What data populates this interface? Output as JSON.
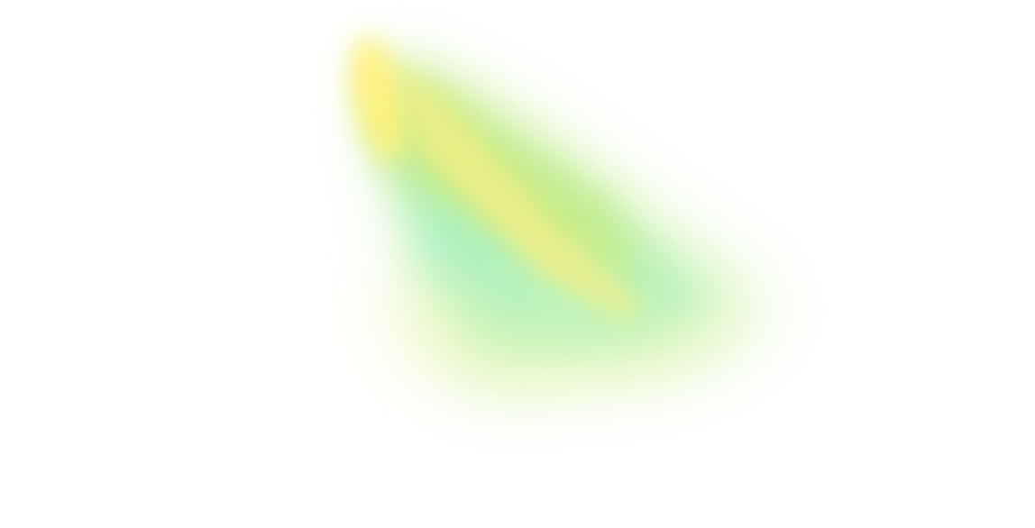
{
  "background_color": "#ffffff",
  "colors": {
    "yellow": "#fff27a",
    "lime": "#c6eb82",
    "mint": "#9ff0c8",
    "light_green": "#d8f5b8",
    "pale_yellow_green": "#f2f7a0",
    "streak_yellow": "#f3ef86"
  }
}
